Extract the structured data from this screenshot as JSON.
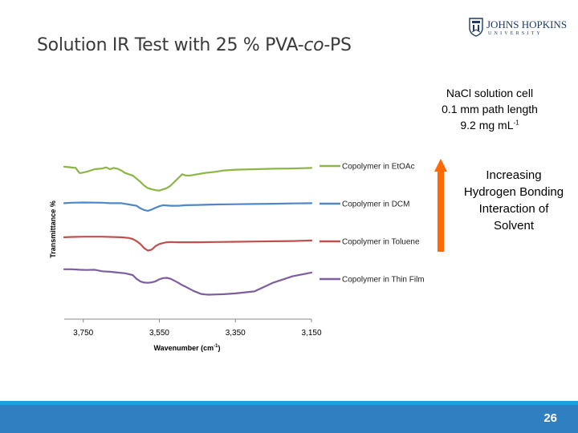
{
  "slide": {
    "title": "Solution IR Test with 25 % PVA-co-PS",
    "title_parts": [
      "Solution IR Test with 25 % PVA-",
      "co",
      "-PS"
    ],
    "page_number": "26"
  },
  "logo": {
    "name": "JOHNS HOPKINS",
    "sub": "UNIVERSITY",
    "icon": "johns-hopkins-shield",
    "color": "#1f3a68"
  },
  "conditions": {
    "line1": "NaCl solution cell",
    "line2": "0.1 mm path length",
    "line3_base": "9.2 mg mL",
    "line3_sup": "-1"
  },
  "annotation": {
    "arrow_color": "#ff6a00",
    "lines": [
      "Increasing",
      "Hydrogen Bonding",
      "Interaction of",
      "Solvent"
    ]
  },
  "footer": {
    "color": "#2f7fc1",
    "accent": "#19a2dd"
  },
  "chart_data": {
    "type": "line",
    "title": "",
    "xlabel_base": "Wavenumber (cm",
    "xlabel_sup": "-1",
    "xlabel_end": ")",
    "ylabel": "Transmittance %",
    "x_reversed": true,
    "xlim": [
      3800,
      3150
    ],
    "ylim": [
      0,
      7
    ],
    "x_ticks": [
      3750,
      3550,
      3350,
      3150
    ],
    "x_tick_labels": [
      "3,750",
      "3,550",
      "3,350",
      "3,150"
    ],
    "grid": false,
    "legend_position": "right",
    "series": [
      {
        "name": "Copolymer in EtOAc",
        "color": "#8db548",
        "x": [
          3800,
          3770,
          3760,
          3755,
          3740,
          3720,
          3700,
          3690,
          3680,
          3670,
          3660,
          3650,
          3640,
          3620,
          3600,
          3590,
          3580,
          3570,
          3560,
          3550,
          3540,
          3530,
          3520,
          3510,
          3500,
          3490,
          3480,
          3470,
          3450,
          3430,
          3400,
          3380,
          3350,
          3300,
          3250,
          3200,
          3150
        ],
        "y": [
          6.05,
          6.0,
          5.8,
          5.8,
          5.85,
          5.95,
          5.98,
          6.02,
          5.95,
          6.0,
          5.97,
          5.9,
          5.8,
          5.7,
          5.45,
          5.3,
          5.2,
          5.15,
          5.12,
          5.1,
          5.15,
          5.2,
          5.3,
          5.45,
          5.6,
          5.75,
          5.7,
          5.7,
          5.75,
          5.8,
          5.85,
          5.9,
          5.93,
          5.95,
          5.97,
          5.98,
          6.0
        ]
      },
      {
        "name": "Copolymer in DCM",
        "color": "#4e88c7",
        "x": [
          3800,
          3780,
          3750,
          3700,
          3680,
          3650,
          3630,
          3610,
          3600,
          3590,
          3580,
          3570,
          3560,
          3550,
          3540,
          3520,
          3500,
          3480,
          3450,
          3400,
          3350,
          3300,
          3250,
          3200,
          3150
        ],
        "y": [
          4.6,
          4.62,
          4.63,
          4.62,
          4.6,
          4.6,
          4.55,
          4.5,
          4.4,
          4.33,
          4.3,
          4.35,
          4.42,
          4.48,
          4.52,
          4.5,
          4.5,
          4.52,
          4.53,
          4.55,
          4.56,
          4.57,
          4.58,
          4.59,
          4.6
        ]
      },
      {
        "name": "Copolymer in Toluene",
        "color": "#c0504d",
        "x": [
          3800,
          3780,
          3750,
          3700,
          3650,
          3630,
          3620,
          3610,
          3600,
          3590,
          3580,
          3570,
          3560,
          3550,
          3540,
          3530,
          3520,
          3500,
          3450,
          3400,
          3350,
          3300,
          3250,
          3200,
          3150
        ],
        "y": [
          3.25,
          3.26,
          3.27,
          3.27,
          3.25,
          3.22,
          3.18,
          3.1,
          2.98,
          2.82,
          2.72,
          2.76,
          2.9,
          2.98,
          3.02,
          3.05,
          3.06,
          3.05,
          3.05,
          3.06,
          3.07,
          3.08,
          3.09,
          3.1,
          3.12
        ]
      },
      {
        "name": "Copolymer in Thin Film",
        "color": "#7d5ea2",
        "x": [
          3800,
          3780,
          3760,
          3740,
          3720,
          3700,
          3680,
          3660,
          3640,
          3620,
          3610,
          3600,
          3590,
          3580,
          3570,
          3560,
          3550,
          3540,
          3530,
          3520,
          3510,
          3500,
          3490,
          3480,
          3470,
          3460,
          3450,
          3440,
          3430,
          3420,
          3400,
          3380,
          3350,
          3300,
          3250,
          3200,
          3150
        ],
        "y": [
          1.98,
          1.98,
          1.96,
          1.95,
          1.96,
          1.9,
          1.88,
          1.85,
          1.82,
          1.75,
          1.6,
          1.5,
          1.45,
          1.44,
          1.46,
          1.5,
          1.58,
          1.63,
          1.64,
          1.6,
          1.52,
          1.44,
          1.35,
          1.28,
          1.2,
          1.12,
          1.06,
          1.0,
          0.98,
          0.97,
          0.98,
          0.99,
          1.02,
          1.1,
          1.45,
          1.7,
          1.85
        ]
      }
    ]
  }
}
